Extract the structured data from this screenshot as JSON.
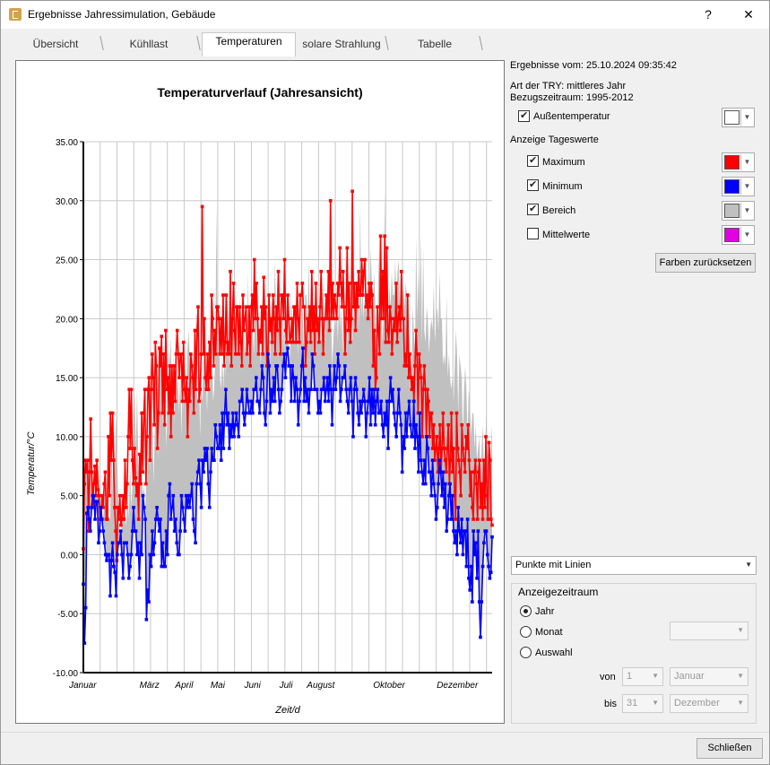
{
  "window": {
    "title": "Ergebnisse Jahressimulation, Gebäude",
    "help_label": "?",
    "close_label": "✕"
  },
  "tabs": [
    {
      "label": "Übersicht",
      "active": false
    },
    {
      "label": "Kühllast",
      "active": false
    },
    {
      "label": "Temperaturen",
      "active": true
    },
    {
      "label": "solare Strahlung",
      "active": false
    },
    {
      "label": "Tabelle",
      "active": false
    }
  ],
  "chart_data": {
    "type": "line",
    "title": "Temperaturverlauf (Jahresansicht)",
    "xlabel": "Zeit/d",
    "ylabel": "Temperatur/°C",
    "ylim": [
      -10,
      35
    ],
    "xlim": [
      1,
      366
    ],
    "y_ticks": [
      "35.00",
      "30.00",
      "25.00",
      "20.00",
      "15.00",
      "10.00",
      "5.00",
      "0.00",
      "-5.00",
      "-10.00"
    ],
    "month_labels": [
      {
        "label": "Januar",
        "day": 1
      },
      {
        "label": "März",
        "day": 60
      },
      {
        "label": "April",
        "day": 91
      },
      {
        "label": "Mai",
        "day": 121
      },
      {
        "label": "Juni",
        "day": 152
      },
      {
        "label": "Juli",
        "day": 182
      },
      {
        "label": "August",
        "day": 213
      },
      {
        "label": "Oktober",
        "day": 274
      },
      {
        "label": "Dezember",
        "day": 335
      }
    ],
    "grid": true,
    "legend": "none",
    "area_color": "#c0c0c0",
    "series": [
      {
        "name": "Maximum",
        "color": "#ff0000",
        "values": [
          0.5,
          6,
          8,
          7,
          8,
          2,
          7,
          11.5,
          7,
          4,
          6,
          7.5,
          5,
          8,
          5.5,
          5,
          3,
          3,
          5,
          4,
          6,
          7,
          3,
          3,
          10,
          5,
          12,
          8,
          12,
          8,
          4,
          2,
          -0.5,
          4,
          3,
          5,
          2.5,
          3,
          5,
          3,
          8,
          4,
          6,
          10,
          14,
          9,
          14,
          8,
          6,
          9,
          6.5,
          5,
          6,
          3,
          8.5,
          6,
          12,
          7,
          12,
          14,
          6,
          10,
          14,
          15,
          8,
          14,
          17,
          15,
          11,
          18,
          16,
          9,
          12,
          17.5,
          16,
          18.5,
          12,
          17,
          11,
          19,
          14,
          15,
          12,
          16,
          10,
          16,
          12,
          16,
          13,
          17,
          19,
          17,
          15,
          17,
          17,
          13,
          18,
          14,
          13,
          15,
          10,
          14,
          13,
          17,
          16,
          15,
          12,
          19,
          14,
          19,
          21,
          13,
          14,
          17,
          29.5,
          17,
          20,
          15,
          14,
          17,
          14,
          18,
          15,
          22,
          20,
          16,
          19,
          17,
          21,
          21,
          20,
          17,
          20,
          17,
          22,
          16,
          18,
          22,
          17,
          18,
          17,
          24,
          16,
          20,
          23,
          19,
          17,
          21,
          21,
          17,
          21,
          18,
          16,
          22,
          19,
          20,
          21,
          17,
          18,
          21,
          16,
          21,
          22,
          19,
          25,
          20,
          23,
          20,
          17,
          19,
          18,
          21,
          17,
          23.5,
          20,
          21,
          16,
          17,
          22,
          19,
          20,
          18,
          22,
          20,
          17,
          21,
          19,
          24,
          20,
          17,
          22,
          22,
          20,
          25,
          19,
          18,
          22,
          20,
          18,
          18.5,
          20,
          18,
          21,
          21,
          18,
          23,
          20,
          18,
          22,
          22,
          23,
          21,
          21,
          16,
          18,
          20,
          19,
          21,
          18,
          24,
          19,
          21,
          17,
          23,
          19,
          20,
          18,
          21,
          24,
          20,
          17,
          20,
          20,
          22,
          20,
          24,
          19,
          30,
          20,
          23,
          20,
          22,
          21,
          20,
          23,
          22,
          26,
          23,
          21,
          24,
          21,
          17,
          20,
          26,
          19,
          23,
          18,
          20,
          30.8,
          21,
          23,
          19,
          23,
          21,
          24,
          22,
          22,
          25,
          22,
          24,
          25,
          21,
          22,
          20,
          23,
          21,
          23,
          22,
          16,
          19,
          14,
          15,
          21,
          19,
          17,
          27,
          20,
          24,
          20,
          27,
          18,
          26,
          19,
          18,
          21,
          20,
          17,
          19,
          20,
          19,
          23,
          18,
          20,
          21,
          19,
          24,
          20,
          20,
          16,
          17,
          16,
          22,
          15,
          17,
          15,
          14,
          15,
          13,
          16,
          19,
          17,
          12,
          17,
          16,
          15,
          10,
          14,
          16,
          14,
          10,
          14,
          13,
          10,
          12,
          12,
          9,
          11,
          8,
          9,
          10,
          7,
          9,
          11,
          7,
          9,
          12,
          9,
          8,
          7,
          9,
          11,
          6,
          8,
          12,
          7,
          9,
          5,
          3,
          12,
          9,
          8,
          7,
          5,
          11,
          9,
          8,
          7,
          10,
          9,
          11,
          8,
          5,
          7,
          4,
          3,
          7,
          8,
          6,
          3,
          7,
          8,
          4,
          6,
          3,
          8,
          4,
          10,
          5,
          3,
          9.5,
          8,
          3,
          2.5
        ]
      },
      {
        "name": "Minimum",
        "color": "#0000ff",
        "values": [
          -2.5,
          -7.5,
          -4.5,
          3.5,
          4,
          3,
          2,
          4,
          5,
          5,
          3,
          4.5,
          4.5,
          1,
          2,
          4,
          3,
          2,
          1,
          0,
          -0.5,
          0,
          0,
          -3.5,
          -0.5,
          1,
          -1,
          -1.5,
          -3.5,
          0,
          1,
          1,
          2,
          0,
          -2,
          1,
          1,
          1,
          0,
          -2,
          -1,
          0,
          2,
          4,
          2,
          2,
          0,
          1,
          -2,
          1,
          0,
          5,
          4,
          3,
          -5.5,
          -3,
          -4,
          0,
          -1,
          2,
          0,
          1,
          3,
          4,
          3,
          2,
          3,
          -1,
          1,
          -1,
          -1,
          2,
          0,
          5,
          6,
          3,
          4,
          5,
          2,
          3,
          1,
          0,
          0,
          2,
          5,
          4,
          3,
          2,
          5,
          4,
          5,
          4,
          5,
          6,
          3,
          2,
          1,
          6,
          7,
          8,
          6,
          4,
          8,
          7,
          9,
          8,
          9,
          6,
          4,
          7,
          9,
          8,
          8,
          11,
          10,
          9,
          9,
          11,
          8,
          12,
          9,
          12,
          14,
          11,
          12,
          9,
          11,
          10,
          12,
          10,
          11,
          12,
          11,
          10,
          13,
          13,
          14,
          12,
          11,
          12,
          14,
          13,
          12,
          12,
          13,
          12,
          14,
          14,
          15,
          13,
          13,
          12,
          14,
          16,
          15,
          12,
          11,
          13,
          17,
          16,
          12,
          14,
          13,
          15,
          13,
          16,
          16,
          14,
          12,
          13,
          14,
          16,
          17,
          15,
          17,
          17.5,
          16,
          16,
          13,
          16,
          15,
          13,
          15,
          14,
          11,
          13,
          14,
          16,
          17.5,
          13,
          15,
          13,
          14,
          12,
          14,
          14,
          17,
          16,
          14,
          14,
          14,
          12,
          13,
          12,
          14,
          14,
          15,
          13,
          14,
          15,
          13,
          16,
          14,
          11,
          14,
          16,
          14,
          15,
          17,
          16,
          13,
          14,
          15,
          15,
          16,
          14,
          13,
          12,
          14,
          15,
          13,
          10,
          14,
          15,
          14,
          12,
          11,
          13,
          12,
          13,
          14,
          13,
          10,
          12,
          13,
          15,
          11,
          14,
          12,
          14,
          11,
          13,
          14,
          12,
          12,
          13,
          11,
          10,
          12,
          11,
          13,
          9,
          13,
          15,
          13,
          14,
          12,
          11,
          10,
          12,
          14,
          12,
          11,
          7,
          10,
          9,
          12,
          10,
          12,
          13,
          11,
          10,
          10,
          13,
          9,
          11,
          10,
          7,
          12,
          8,
          7,
          6,
          8,
          6,
          10,
          9,
          7,
          7,
          5,
          8,
          6,
          5,
          3,
          4,
          6,
          8,
          7,
          5,
          7,
          4,
          6,
          2,
          3,
          5,
          6,
          3,
          5,
          2,
          1,
          2,
          0,
          4,
          2,
          1,
          3,
          0,
          2,
          2,
          -1,
          3,
          -2,
          -3,
          -1,
          -4,
          2,
          0,
          1,
          -2,
          2,
          -4,
          -7,
          -4,
          -1,
          1,
          2,
          2,
          0,
          -1,
          -2,
          -1.5,
          1.5
        ]
      }
    ]
  },
  "panel": {
    "results_from": "Ergebnisse vom: 25.10.2024 09:35:42",
    "try_type": "Art der TRY: mittleres Jahr",
    "reference_period": "Bezugszeitraum: 1995-2012",
    "outdoor_label": "Außentemperatur",
    "outdoor_checked": true,
    "outdoor_color": "#ffffff",
    "daily_values_label": "Anzeige Tageswerte",
    "options": [
      {
        "label": "Maximum",
        "checked": true,
        "color": "#ff0000"
      },
      {
        "label": "Minimum",
        "checked": true,
        "color": "#0000ff"
      },
      {
        "label": "Bereich",
        "checked": true,
        "color": "#c0c0c0"
      },
      {
        "label": "Mittelwerte",
        "checked": false,
        "color": "#e000e0"
      }
    ],
    "reset_colors_label": "Farben zurücksetzen",
    "display_mode": "Punkte mit Linien",
    "display_period": {
      "title": "Anzeigezeitraum",
      "year_label": "Jahr",
      "month_label": "Monat",
      "selection_label": "Auswahl",
      "selected": "Jahr",
      "from_label": "von",
      "to_label": "bis",
      "from_day": "1",
      "from_month": "Januar",
      "to_day": "31",
      "to_month": "Dezember"
    }
  },
  "footer": {
    "close_button_label": "Schließen"
  }
}
